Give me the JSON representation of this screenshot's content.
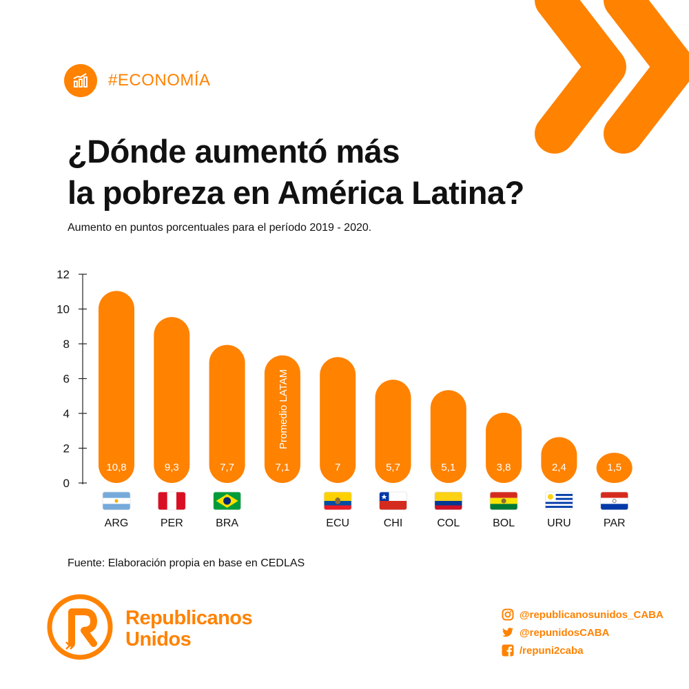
{
  "header": {
    "tag": "#ECONOMÍA",
    "tag_icon": "bar-chart-growth-icon",
    "title_line1": "¿Dónde aumentó más",
    "title_line2": "la pobreza en América Latina?",
    "subtitle": "Aumento en puntos porcentuales para el período 2019 - 2020."
  },
  "chart_data": {
    "type": "bar",
    "categories": [
      "ARG",
      "PER",
      "BRA",
      "",
      "ECU",
      "CHI",
      "COL",
      "BOL",
      "URU",
      "PAR"
    ],
    "values": [
      10.8,
      9.3,
      7.7,
      7.1,
      7,
      5.7,
      5.1,
      3.8,
      2.4,
      1.5
    ],
    "value_labels": [
      "10,8",
      "9,3",
      "7,7",
      "7,1",
      "7",
      "5,7",
      "5,1",
      "3,8",
      "2,4",
      "1,5"
    ],
    "flags": [
      "argentina-flag",
      "peru-flag",
      "brazil-flag",
      "",
      "ecuador-flag",
      "chile-flag",
      "colombia-flag",
      "bolivia-flag",
      "uruguay-flag",
      "paraguay-flag"
    ],
    "annotation": "Promedio LATAM",
    "annotation_index": 3,
    "yticks": [
      "0",
      "2",
      "4",
      "6",
      "8",
      "10",
      "12"
    ],
    "ylim": [
      0,
      12
    ],
    "grid": false,
    "legend": "none"
  },
  "source": "Fuente: Elaboración propia en base en CEDLAS",
  "brand": {
    "name_line1": "Republicanos",
    "name_line2": "Unidos",
    "logo_icon": "republicanos-unidos-r-logo"
  },
  "socials": [
    {
      "icon": "instagram-icon",
      "text": "@republicanosunidos_CABA"
    },
    {
      "icon": "twitter-icon",
      "text": "@repunidosCABA"
    },
    {
      "icon": "facebook-icon",
      "text": "/repuni2caba"
    }
  ],
  "colors": {
    "accent": "#ff8200",
    "text": "#111111",
    "background": "#ffffff"
  }
}
